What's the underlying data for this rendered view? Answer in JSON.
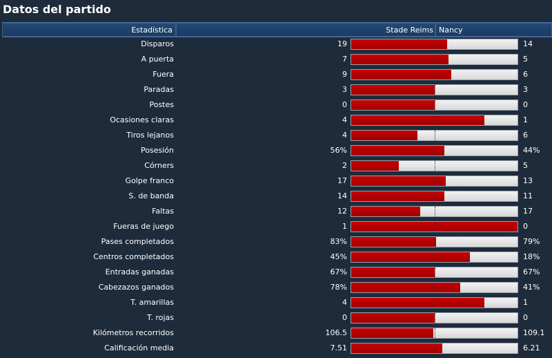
{
  "title": "Datos del partido",
  "header": {
    "stat": "Estadística",
    "home": "Stade Reims",
    "away": "Nancy"
  },
  "colors": {
    "home_bar": "#b00000",
    "away_bar": "#e6e6e6",
    "background": "#1e2b3b"
  },
  "rows": [
    {
      "label": "Disparos",
      "home": "19",
      "away": "14",
      "home_share": 0.576
    },
    {
      "label": "A puerta",
      "home": "7",
      "away": "5",
      "home_share": 0.583
    },
    {
      "label": "Fuera",
      "home": "9",
      "away": "6",
      "home_share": 0.6
    },
    {
      "label": "Paradas",
      "home": "3",
      "away": "3",
      "home_share": 0.5
    },
    {
      "label": "Postes",
      "home": "0",
      "away": "0",
      "home_share": 0.5
    },
    {
      "label": "Ocasiones claras",
      "home": "4",
      "away": "1",
      "home_share": 0.8
    },
    {
      "label": "Tiros lejanos",
      "home": "4",
      "away": "6",
      "home_share": 0.4
    },
    {
      "label": "Posesión",
      "home": "56%",
      "away": "44%",
      "home_share": 0.56
    },
    {
      "label": "Córners",
      "home": "2",
      "away": "5",
      "home_share": 0.286
    },
    {
      "label": "Golpe franco",
      "home": "17",
      "away": "13",
      "home_share": 0.567
    },
    {
      "label": "S. de banda",
      "home": "14",
      "away": "11",
      "home_share": 0.56
    },
    {
      "label": "Faltas",
      "home": "12",
      "away": "17",
      "home_share": 0.414
    },
    {
      "label": "Fueras de juego",
      "home": "1",
      "away": "0",
      "home_share": 1.0
    },
    {
      "label": "Pases completados",
      "home": "83%",
      "away": "79%",
      "home_share": 0.512
    },
    {
      "label": "Centros completados",
      "home": "45%",
      "away": "18%",
      "home_share": 0.714
    },
    {
      "label": "Entradas ganadas",
      "home": "67%",
      "away": "67%",
      "home_share": 0.5
    },
    {
      "label": "Cabezazos ganados",
      "home": "78%",
      "away": "41%",
      "home_share": 0.655
    },
    {
      "label": "T. amarillas",
      "home": "4",
      "away": "1",
      "home_share": 0.8
    },
    {
      "label": "T. rojas",
      "home": "0",
      "away": "0",
      "home_share": 0.5
    },
    {
      "label": "Kilómetros recorridos",
      "home": "106.5",
      "away": "109.1",
      "home_share": 0.494
    },
    {
      "label": "Calificación media",
      "home": "7.51",
      "away": "6.21",
      "home_share": 0.547
    }
  ]
}
